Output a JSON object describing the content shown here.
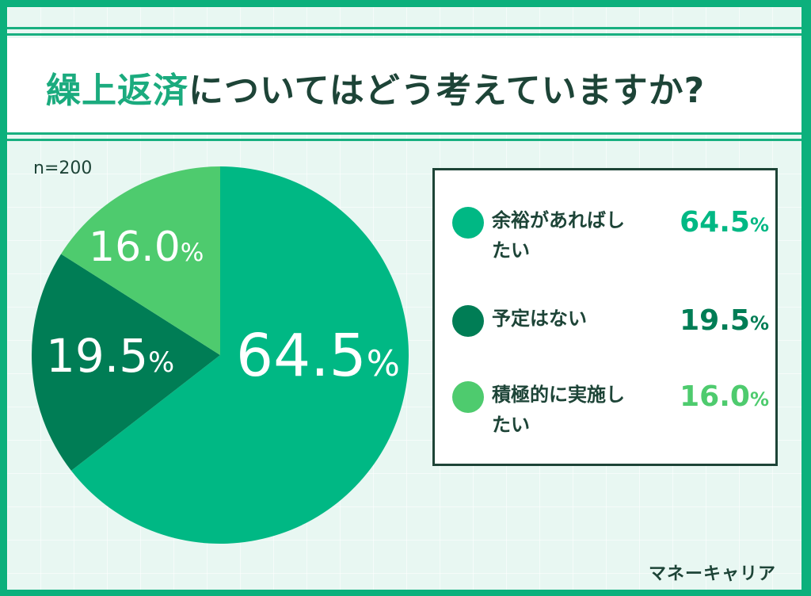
{
  "header": {
    "title_accent": "繰上返済",
    "title_rest": "についてはどう考えていますか?"
  },
  "sample_size": "n=200",
  "brand": "マネーキャリア",
  "colors": {
    "frame": "#0cb07c",
    "slice_1": "#00b884",
    "slice_2": "#007d55",
    "slice_3": "#4ecb6e",
    "text_dark": "#1d4437"
  },
  "legend": {
    "items": [
      {
        "label": "余裕があればしたい",
        "value": "64.5",
        "unit": "%",
        "color": "#00b884"
      },
      {
        "label": "予定はない",
        "value": "19.5",
        "unit": "%",
        "color": "#007d55"
      },
      {
        "label": "積極的に実施したい",
        "value": "16.0",
        "unit": "%",
        "color": "#4ecb6e"
      }
    ]
  },
  "pie_labels": [
    {
      "value": "64.5",
      "unit": "%"
    },
    {
      "value": "19.5",
      "unit": "%"
    },
    {
      "value": "16.0",
      "unit": "%"
    }
  ],
  "chart_data": {
    "type": "pie",
    "title": "繰上返済についてはどう考えていますか?",
    "subtitle": "n=200",
    "categories": [
      "余裕があればしたい",
      "予定はない",
      "積極的に実施したい"
    ],
    "values": [
      64.5,
      19.5,
      16.0
    ],
    "unit": "%",
    "colors": [
      "#00b884",
      "#007d55",
      "#4ecb6e"
    ],
    "start_angle": "12 o'clock, clockwise",
    "legend_position": "right"
  }
}
